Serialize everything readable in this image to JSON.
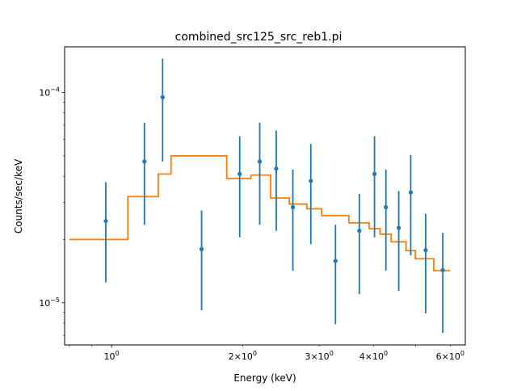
{
  "chart_data": {
    "type": "scatter",
    "title": "combined_src125_src_reb1.pi",
    "xlabel": "Energy (keV)",
    "ylabel": "Counts/sec/keV",
    "xscale": "log",
    "yscale": "log",
    "xlim": [
      0.78,
      6.5
    ],
    "ylim": [
      6.3e-06,
      0.000165
    ],
    "major_x_ticks": [
      {
        "value": 1.0,
        "base": "10",
        "exp": "0"
      }
    ],
    "minor_x_ticks_labeled": [
      {
        "value": 2.0,
        "mantissa": "2",
        "base": "10",
        "exp": "0"
      },
      {
        "value": 3.0,
        "mantissa": "3",
        "base": "10",
        "exp": "0"
      },
      {
        "value": 4.0,
        "mantissa": "4",
        "base": "10",
        "exp": "0"
      },
      {
        "value": 6.0,
        "mantissa": "6",
        "base": "10",
        "exp": "0"
      }
    ],
    "minor_x_ticks_unlabeled": [
      0.8,
      0.9,
      5.0
    ],
    "major_y_ticks": [
      {
        "value": 1e-05,
        "base": "10",
        "exp": "−5"
      },
      {
        "value": 0.0001,
        "base": "10",
        "exp": "−4"
      }
    ],
    "minor_y_ticks": [
      7e-06,
      8e-06,
      9e-06,
      2e-05,
      3e-05,
      4e-05,
      5e-05,
      6e-05,
      7e-05,
      8e-05,
      9e-05
    ],
    "grid": false,
    "legend": "none",
    "series": [
      {
        "kind": "data-with-errorbars",
        "color": "#1f77b4",
        "points": [
          {
            "x": 0.97,
            "y": 2.45e-05,
            "ylow": 1.25e-05,
            "yhigh": 3.75e-05
          },
          {
            "x": 1.19,
            "y": 4.7e-05,
            "ylow": 2.35e-05,
            "yhigh": 7.2e-05
          },
          {
            "x": 1.31,
            "y": 9.5e-05,
            "ylow": 4.7e-05,
            "yhigh": 0.000145
          },
          {
            "x": 1.61,
            "y": 1.8e-05,
            "ylow": 9.2e-06,
            "yhigh": 2.75e-05
          },
          {
            "x": 1.97,
            "y": 4.1e-05,
            "ylow": 2.05e-05,
            "yhigh": 6.2e-05
          },
          {
            "x": 2.19,
            "y": 4.7e-05,
            "ylow": 2.35e-05,
            "yhigh": 7.2e-05
          },
          {
            "x": 2.39,
            "y": 4.35e-05,
            "ylow": 2.2e-05,
            "yhigh": 6.6e-05
          },
          {
            "x": 2.61,
            "y": 2.85e-05,
            "ylow": 1.42e-05,
            "yhigh": 4.3e-05
          },
          {
            "x": 2.87,
            "y": 3.8e-05,
            "ylow": 1.9e-05,
            "yhigh": 5.7e-05
          },
          {
            "x": 3.27,
            "y": 1.58e-05,
            "ylow": 7.9e-06,
            "yhigh": 2.35e-05
          },
          {
            "x": 3.71,
            "y": 2.2e-05,
            "ylow": 1.1e-05,
            "yhigh": 3.3e-05
          },
          {
            "x": 4.02,
            "y": 4.1e-05,
            "ylow": 2.05e-05,
            "yhigh": 6.2e-05
          },
          {
            "x": 4.27,
            "y": 2.85e-05,
            "ylow": 1.42e-05,
            "yhigh": 4.3e-05
          },
          {
            "x": 4.57,
            "y": 2.27e-05,
            "ylow": 1.14e-05,
            "yhigh": 3.4e-05
          },
          {
            "x": 4.87,
            "y": 3.35e-05,
            "ylow": 1.68e-05,
            "yhigh": 5.05e-05
          },
          {
            "x": 5.27,
            "y": 1.78e-05,
            "ylow": 8.9e-06,
            "yhigh": 2.65e-05
          },
          {
            "x": 5.77,
            "y": 1.43e-05,
            "ylow": 7.2e-06,
            "yhigh": 2.15e-05
          }
        ]
      },
      {
        "kind": "model-step",
        "color": "#ff7f0e",
        "steps": [
          {
            "x0": 0.8,
            "x1": 1.09,
            "y": 2e-05
          },
          {
            "x0": 1.09,
            "x1": 1.28,
            "y": 3.2e-05
          },
          {
            "x0": 1.28,
            "x1": 1.37,
            "y": 4.1e-05
          },
          {
            "x0": 1.37,
            "x1": 1.84,
            "y": 5e-05
          },
          {
            "x0": 1.84,
            "x1": 2.09,
            "y": 3.9e-05
          },
          {
            "x0": 2.09,
            "x1": 2.32,
            "y": 4.05e-05
          },
          {
            "x0": 2.32,
            "x1": 2.56,
            "y": 3.15e-05
          },
          {
            "x0": 2.56,
            "x1": 2.81,
            "y": 2.95e-05
          },
          {
            "x0": 2.81,
            "x1": 3.04,
            "y": 2.8e-05
          },
          {
            "x0": 3.04,
            "x1": 3.51,
            "y": 2.6e-05
          },
          {
            "x0": 3.51,
            "x1": 3.91,
            "y": 2.4e-05
          },
          {
            "x0": 3.91,
            "x1": 4.14,
            "y": 2.25e-05
          },
          {
            "x0": 4.14,
            "x1": 4.39,
            "y": 2.12e-05
          },
          {
            "x0": 4.39,
            "x1": 4.75,
            "y": 1.95e-05
          },
          {
            "x0": 4.75,
            "x1": 4.99,
            "y": 1.77e-05
          },
          {
            "x0": 4.99,
            "x1": 5.5,
            "y": 1.62e-05
          },
          {
            "x0": 5.5,
            "x1": 6.0,
            "y": 1.42e-05
          }
        ]
      }
    ]
  }
}
